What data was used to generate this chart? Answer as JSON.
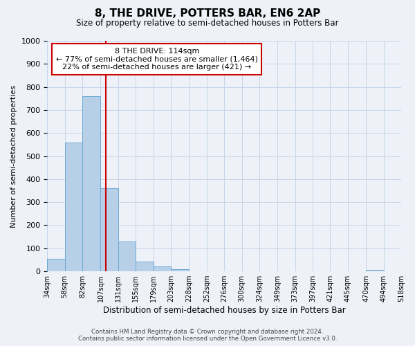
{
  "title": "8, THE DRIVE, POTTERS BAR, EN6 2AP",
  "subtitle": "Size of property relative to semi-detached houses in Potters Bar",
  "xlabel": "Distribution of semi-detached houses by size in Potters Bar",
  "ylabel": "Number of semi-detached properties",
  "bar_values": [
    55,
    560,
    760,
    360,
    130,
    42,
    20,
    8,
    0,
    0,
    0,
    0,
    0,
    0,
    0,
    0,
    0,
    0,
    5,
    0
  ],
  "bin_edges": [
    34,
    58,
    82,
    107,
    131,
    155,
    179,
    203,
    228,
    252,
    276,
    300,
    324,
    349,
    373,
    397,
    421,
    445,
    470,
    494,
    518
  ],
  "bin_labels": [
    "34sqm",
    "58sqm",
    "82sqm",
    "107sqm",
    "131sqm",
    "155sqm",
    "179sqm",
    "203sqm",
    "228sqm",
    "252sqm",
    "276sqm",
    "300sqm",
    "324sqm",
    "349sqm",
    "373sqm",
    "397sqm",
    "421sqm",
    "445sqm",
    "470sqm",
    "494sqm",
    "518sqm"
  ],
  "bar_color": "#b8cfe8",
  "bar_edge_color": "#6aaad4",
  "vline_x": 114,
  "vline_color": "#cc0000",
  "ylim": [
    0,
    1000
  ],
  "yticks": [
    0,
    100,
    200,
    300,
    400,
    500,
    600,
    700,
    800,
    900,
    1000
  ],
  "annotation_title": "8 THE DRIVE: 114sqm",
  "annotation_line1": "← 77% of semi-detached houses are smaller (1,464)",
  "annotation_line2": "22% of semi-detached houses are larger (421) →",
  "annotation_box_facecolor": "#ffffff",
  "annotation_box_edgecolor": "#cc0000",
  "footer_line1": "Contains HM Land Registry data © Crown copyright and database right 2024.",
  "footer_line2": "Contains public sector information licensed under the Open Government Licence v3.0.",
  "background_color": "#eef2f8",
  "grid_color": "#c5d5e8"
}
